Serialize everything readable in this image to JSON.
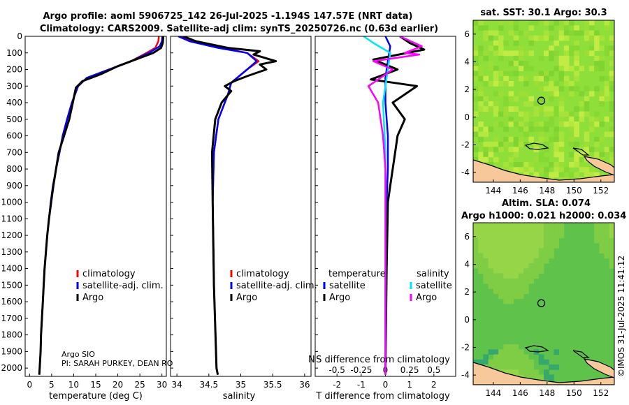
{
  "figure": {
    "title_line1": "Argo profile: aoml 5906725_142 26-Jul-2025 -1.194S 147.57E (NRT data)",
    "title_line2": "Climatology: CARS2009. Satellite-adj clim: synTS_20250726.nc (0.63d earlier)",
    "credit": "©IMOS 31-Jul-2025 11:41:12",
    "argo_center": "Argo SIO",
    "pi_text": "PI: SARAH PURKEY, DEAN RO",
    "stray_label": "N",
    "colors": {
      "climatology": "#ff0000",
      "satellite": "#0000ff",
      "argo": "#000000",
      "temp_diff": "#00e5ff",
      "sal_diff": "#ff00ff",
      "land": "#f7c99a",
      "ocean_sst": "#8fdf3a",
      "ocean_sla": "#5fc24a"
    }
  },
  "chart_data": [
    {
      "type": "line",
      "id": "temperature",
      "xlabel": "temperature (deg C)",
      "xlim": [
        -1,
        31
      ],
      "xticks": [
        0,
        5,
        10,
        15,
        20,
        25,
        30
      ],
      "ylim": [
        2050,
        0
      ],
      "yticks": [
        0,
        100,
        200,
        300,
        400,
        500,
        600,
        700,
        800,
        900,
        1000,
        1100,
        1200,
        1300,
        1400,
        1500,
        1600,
        1700,
        1800,
        1900,
        2000
      ],
      "legend": [
        "climatology",
        "satellite-adj. clim.",
        "Argo"
      ],
      "series": [
        {
          "name": "climatology",
          "color": "#ff0000",
          "points": [
            [
              29.3,
              0
            ],
            [
              29.2,
              30
            ],
            [
              28.5,
              70
            ],
            [
              26.5,
              100
            ],
            [
              23,
              150
            ],
            [
              18,
              200
            ],
            [
              13,
              250
            ],
            [
              11,
              300
            ],
            [
              9.6,
              400
            ],
            [
              8.5,
              500
            ],
            [
              7.5,
              600
            ],
            [
              6.8,
              700
            ],
            [
              6,
              800
            ],
            [
              5.3,
              900
            ],
            [
              4.8,
              1000
            ],
            [
              4.4,
              1100
            ],
            [
              4,
              1200
            ],
            [
              3.7,
              1300
            ],
            [
              3.4,
              1400
            ],
            [
              3.2,
              1500
            ],
            [
              3,
              1600
            ],
            [
              2.8,
              1700
            ],
            [
              2.6,
              1800
            ],
            [
              2.5,
              1900
            ],
            [
              2.3,
              2000
            ],
            [
              2.2,
              2040
            ]
          ]
        },
        {
          "name": "satellite-adj. clim.",
          "color": "#0000ff",
          "points": [
            [
              30.1,
              0
            ],
            [
              30,
              30
            ],
            [
              29.5,
              60
            ],
            [
              27,
              100
            ],
            [
              23,
              150
            ],
            [
              18,
              200
            ],
            [
              13,
              250
            ],
            [
              11,
              300
            ],
            [
              9.6,
              400
            ],
            [
              8.5,
              500
            ],
            [
              7.5,
              600
            ],
            [
              6.8,
              700
            ],
            [
              6,
              800
            ],
            [
              5.3,
              900
            ],
            [
              4.8,
              1000
            ],
            [
              4.4,
              1100
            ],
            [
              4,
              1200
            ],
            [
              3.7,
              1300
            ],
            [
              3.4,
              1400
            ],
            [
              3.2,
              1500
            ],
            [
              3,
              1600
            ],
            [
              2.8,
              1700
            ],
            [
              2.6,
              1800
            ],
            [
              2.5,
              1900
            ],
            [
              2.3,
              2000
            ],
            [
              2.2,
              2040
            ]
          ]
        },
        {
          "name": "Argo",
          "color": "#000000",
          "points": [
            [
              30.3,
              0
            ],
            [
              30.2,
              40
            ],
            [
              29.8,
              70
            ],
            [
              28,
              100
            ],
            [
              24,
              140
            ],
            [
              20,
              180
            ],
            [
              16,
              230
            ],
            [
              12,
              270
            ],
            [
              10.5,
              310
            ],
            [
              9.8,
              400
            ],
            [
              9,
              500
            ],
            [
              7.8,
              600
            ],
            [
              6.6,
              700
            ],
            [
              6,
              800
            ],
            [
              5.4,
              900
            ],
            [
              4.9,
              1000
            ],
            [
              4.4,
              1100
            ],
            [
              4,
              1200
            ],
            [
              3.7,
              1300
            ],
            [
              3.4,
              1400
            ],
            [
              3.2,
              1500
            ],
            [
              3,
              1600
            ],
            [
              2.8,
              1700
            ],
            [
              2.6,
              1800
            ],
            [
              2.5,
              1900
            ],
            [
              2.3,
              2000
            ],
            [
              2.2,
              2040
            ]
          ]
        }
      ]
    },
    {
      "type": "line",
      "id": "salinity",
      "xlabel": "salinity",
      "xlim": [
        33.9,
        36.1
      ],
      "xticks": [
        34,
        34.5,
        35,
        35.5,
        36
      ],
      "xticklabels": [
        "34",
        "34.5",
        "35",
        "35.5",
        "36"
      ],
      "ylim": [
        2050,
        0
      ],
      "legend": [
        "climatology",
        "satellite-adj. clim.",
        "Argo"
      ],
      "series": [
        {
          "name": "climatology",
          "color": "#ff0000",
          "points": [
            [
              34.05,
              0
            ],
            [
              34.25,
              30
            ],
            [
              34.7,
              70
            ],
            [
              35.1,
              100
            ],
            [
              35.28,
              150
            ],
            [
              35.1,
              200
            ],
            [
              34.85,
              280
            ],
            [
              34.8,
              350
            ],
            [
              34.65,
              500
            ],
            [
              34.58,
              700
            ],
            [
              34.56,
              1000
            ],
            [
              34.58,
              1500
            ],
            [
              34.62,
              2000
            ],
            [
              34.64,
              2040
            ]
          ]
        },
        {
          "name": "satellite-adj. clim.",
          "color": "#0000ff",
          "points": [
            [
              34.02,
              0
            ],
            [
              34.2,
              30
            ],
            [
              34.65,
              70
            ],
            [
              35.1,
              100
            ],
            [
              35.25,
              150
            ],
            [
              35.1,
              200
            ],
            [
              34.85,
              280
            ],
            [
              34.8,
              350
            ],
            [
              34.65,
              500
            ],
            [
              34.58,
              700
            ],
            [
              34.56,
              1000
            ],
            [
              34.58,
              1500
            ],
            [
              34.62,
              2000
            ],
            [
              34.64,
              2040
            ]
          ]
        },
        {
          "name": "Argo",
          "color": "#000000",
          "points": [
            [
              34.1,
              0
            ],
            [
              34.3,
              30
            ],
            [
              34.8,
              70
            ],
            [
              35.3,
              90
            ],
            [
              35.2,
              110
            ],
            [
              35.55,
              150
            ],
            [
              35.3,
              170
            ],
            [
              35.4,
              200
            ],
            [
              35.1,
              240
            ],
            [
              34.9,
              270
            ],
            [
              34.75,
              300
            ],
            [
              34.85,
              330
            ],
            [
              34.7,
              400
            ],
            [
              34.6,
              500
            ],
            [
              34.55,
              700
            ],
            [
              34.56,
              1000
            ],
            [
              34.58,
              1500
            ],
            [
              34.62,
              2000
            ],
            [
              34.64,
              2040
            ]
          ]
        }
      ]
    },
    {
      "type": "line",
      "id": "difference",
      "xlabel": "T difference from climatology",
      "overlay_label": "S difference from climatology",
      "xlim": [
        -2.9,
        2.9
      ],
      "xticks": [
        -2,
        -1,
        0,
        1,
        2
      ],
      "sal_ticklabels": [
        "-0.5",
        "-0.25",
        "0",
        "0.25",
        "0.5"
      ],
      "ylim": [
        2050,
        0
      ],
      "legend_left_title": "temperature",
      "legend_right_title": "salinity",
      "legend": [
        "satellite",
        "Argo",
        "satellite",
        "Argo"
      ],
      "series": [
        {
          "name": "temperature satellite",
          "color": "#0000ff",
          "points": [
            [
              0,
              0
            ],
            [
              0.2,
              60
            ],
            [
              0.1,
              150
            ],
            [
              0,
              250
            ],
            [
              0,
              400
            ],
            [
              0.1,
              600
            ],
            [
              0.1,
              800
            ],
            [
              0.05,
              1000
            ],
            [
              0,
              1500
            ],
            [
              0,
              2040
            ]
          ]
        },
        {
          "name": "temperature Argo",
          "color": "#000000",
          "points": [
            [
              0.6,
              0
            ],
            [
              1,
              40
            ],
            [
              1.6,
              80
            ],
            [
              -0.5,
              140
            ],
            [
              0.5,
              200
            ],
            [
              -0.6,
              260
            ],
            [
              1.3,
              300
            ],
            [
              0.3,
              400
            ],
            [
              0.8,
              500
            ],
            [
              0.5,
              600
            ],
            [
              0.4,
              700
            ],
            [
              0.2,
              900
            ],
            [
              0.1,
              1000
            ],
            [
              0.05,
              1400
            ],
            [
              0,
              2040
            ]
          ]
        },
        {
          "name": "salinity satellite",
          "color": "#00e5ff",
          "points": [
            [
              -0.9,
              0
            ],
            [
              -0.5,
              40
            ],
            [
              0.2,
              100
            ],
            [
              0.1,
              200
            ],
            [
              -0.1,
              400
            ],
            [
              0,
              700
            ],
            [
              0,
              2040
            ]
          ]
        },
        {
          "name": "salinity Argo",
          "color": "#ff00ff",
          "points": [
            [
              0.6,
              0
            ],
            [
              1.5,
              60
            ],
            [
              0.8,
              100
            ],
            [
              1.4,
              110
            ],
            [
              -0.5,
              150
            ],
            [
              0.3,
              200
            ],
            [
              -0.7,
              300
            ],
            [
              -0.3,
              400
            ],
            [
              -0.1,
              600
            ],
            [
              0,
              800
            ],
            [
              0,
              1500
            ],
            [
              0,
              2040
            ]
          ]
        }
      ]
    },
    {
      "type": "heatmap",
      "id": "sst_map",
      "title": "sat. SST: 30.1 Argo: 30.3",
      "xlim": [
        142.5,
        153
      ],
      "ylim": [
        -4.7,
        7
      ],
      "xticks": [
        144,
        146,
        148,
        150,
        152
      ],
      "yticks": [
        -4,
        -2,
        0,
        2,
        4,
        6
      ],
      "marker": [
        147.57,
        1.19
      ]
    },
    {
      "type": "heatmap",
      "id": "sla_map",
      "title_line1": "Altim. SLA: 0.074",
      "title_line2": "Argo h1000: 0.021 h2000: 0.034",
      "xlim": [
        142.5,
        153
      ],
      "ylim": [
        -4.7,
        7
      ],
      "xticks": [
        144,
        146,
        148,
        150,
        152
      ],
      "yticks": [
        -4,
        -2,
        0,
        2,
        4,
        6
      ],
      "marker": [
        147.57,
        1.19
      ]
    }
  ]
}
